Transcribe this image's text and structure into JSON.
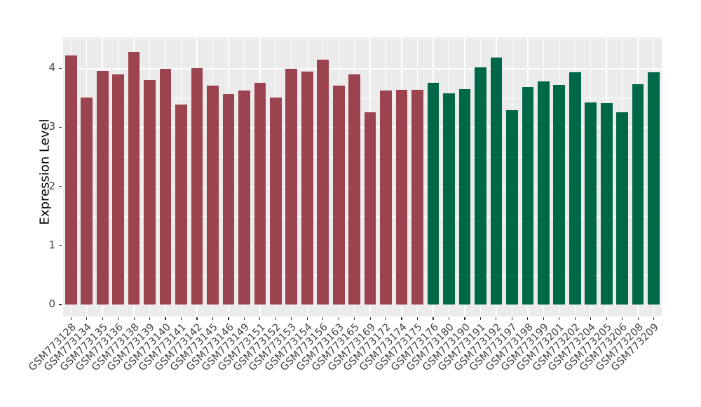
{
  "chart_data": {
    "type": "bar",
    "title": "",
    "xlabel": "",
    "ylabel": "Expression Level",
    "ylim": [
      0,
      4.53
    ],
    "yticks": [
      0,
      1,
      2,
      3,
      4
    ],
    "minor_grid_step": 0.5,
    "legend": "none",
    "panel_bg": "#EBEBEB",
    "gridline_color": "#FFFFFF",
    "axis_text_color": "#424242",
    "groups": [
      {
        "color": "#9C4350"
      },
      {
        "color": "#006748"
      }
    ],
    "samples": [
      {
        "id": "GSM773128",
        "value": 4.22,
        "group": 0
      },
      {
        "id": "GSM773134",
        "value": 3.5,
        "group": 0
      },
      {
        "id": "GSM773135",
        "value": 3.95,
        "group": 0
      },
      {
        "id": "GSM773136",
        "value": 3.89,
        "group": 0
      },
      {
        "id": "GSM773138",
        "value": 4.27,
        "group": 0
      },
      {
        "id": "GSM773139",
        "value": 3.8,
        "group": 0
      },
      {
        "id": "GSM773140",
        "value": 3.99,
        "group": 0
      },
      {
        "id": "GSM773141",
        "value": 3.38,
        "group": 0
      },
      {
        "id": "GSM773142",
        "value": 4.0,
        "group": 0
      },
      {
        "id": "GSM773145",
        "value": 3.71,
        "group": 0
      },
      {
        "id": "GSM773146",
        "value": 3.56,
        "group": 0
      },
      {
        "id": "GSM773149",
        "value": 3.62,
        "group": 0
      },
      {
        "id": "GSM773151",
        "value": 3.75,
        "group": 0
      },
      {
        "id": "GSM773152",
        "value": 3.5,
        "group": 0
      },
      {
        "id": "GSM773153",
        "value": 3.99,
        "group": 0
      },
      {
        "id": "GSM773154",
        "value": 3.94,
        "group": 0
      },
      {
        "id": "GSM773156",
        "value": 4.15,
        "group": 0
      },
      {
        "id": "GSM773163",
        "value": 3.7,
        "group": 0
      },
      {
        "id": "GSM773165",
        "value": 3.89,
        "group": 0
      },
      {
        "id": "GSM773169",
        "value": 3.25,
        "group": 0
      },
      {
        "id": "GSM773172",
        "value": 3.62,
        "group": 0
      },
      {
        "id": "GSM773174",
        "value": 3.63,
        "group": 0
      },
      {
        "id": "GSM773175",
        "value": 3.64,
        "group": 0
      },
      {
        "id": "GSM773176",
        "value": 3.75,
        "group": 1
      },
      {
        "id": "GSM773180",
        "value": 3.57,
        "group": 1
      },
      {
        "id": "GSM773190",
        "value": 3.65,
        "group": 1
      },
      {
        "id": "GSM773191",
        "value": 4.01,
        "group": 1
      },
      {
        "id": "GSM773192",
        "value": 4.18,
        "group": 1
      },
      {
        "id": "GSM773197",
        "value": 3.29,
        "group": 1
      },
      {
        "id": "GSM773198",
        "value": 3.68,
        "group": 1
      },
      {
        "id": "GSM773199",
        "value": 3.78,
        "group": 1
      },
      {
        "id": "GSM773201",
        "value": 3.72,
        "group": 1
      },
      {
        "id": "GSM773202",
        "value": 3.93,
        "group": 1
      },
      {
        "id": "GSM773204",
        "value": 3.42,
        "group": 1
      },
      {
        "id": "GSM773205",
        "value": 3.41,
        "group": 1
      },
      {
        "id": "GSM773206",
        "value": 3.26,
        "group": 1
      },
      {
        "id": "GSM773208",
        "value": 3.73,
        "group": 1
      },
      {
        "id": "GSM773209",
        "value": 3.93,
        "group": 1
      }
    ]
  }
}
